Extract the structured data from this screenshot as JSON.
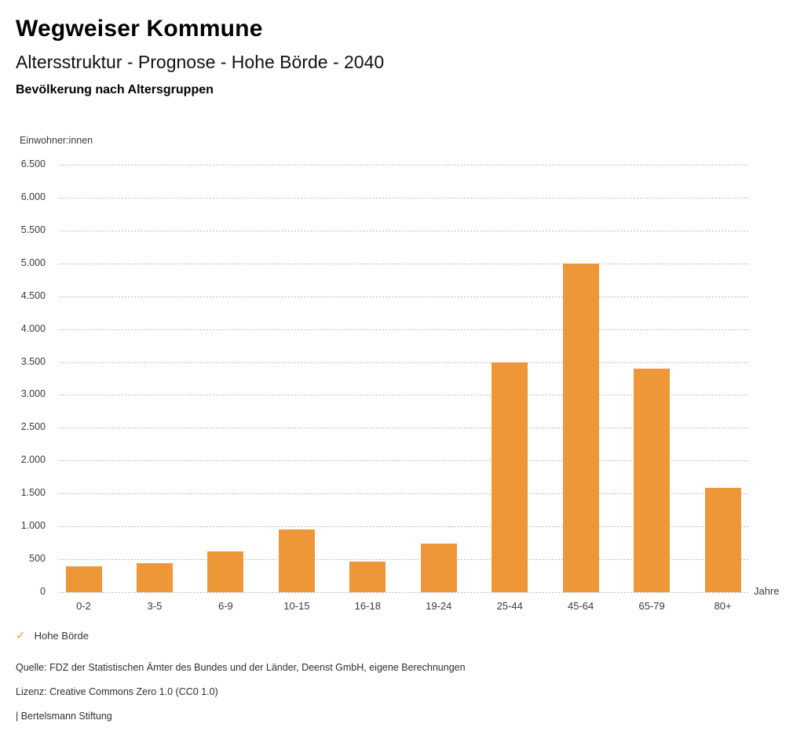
{
  "header": {
    "title": "Wegweiser Kommune",
    "subtitle": "Altersstruktur - Prognose - Hohe Börde - 2040",
    "caption": "Bevölkerung nach Altersgruppen"
  },
  "chart_data": {
    "type": "bar",
    "title": "Bevölkerung nach Altersgruppen",
    "ylabel": "Einwohner:innen",
    "xlabel": "Jahre",
    "categories": [
      "0-2",
      "3-5",
      "6-9",
      "10-15",
      "16-18",
      "19-24",
      "25-44",
      "45-64",
      "65-79",
      "80+"
    ],
    "values": [
      390,
      440,
      620,
      950,
      460,
      740,
      3500,
      5000,
      3400,
      1590
    ],
    "ylim": [
      0,
      6500
    ],
    "ytick_step": 500,
    "ytick_labels": [
      "0",
      "500",
      "1.000",
      "1.500",
      "2.000",
      "2.500",
      "3.000",
      "3.500",
      "4.000",
      "4.500",
      "5.000",
      "5.500",
      "6.000",
      "6.500"
    ],
    "grid": "horizontal-dotted",
    "bar_color": "#ED9738",
    "legend": {
      "position": "bottom-left",
      "items": [
        {
          "label": "Hohe Börde",
          "marker": "check",
          "marker_glyph": "✓",
          "color": "#ED9738"
        }
      ]
    }
  },
  "footer": {
    "source": "Quelle: FDZ der Statistischen Ämter des Bundes und der Länder, Deenst GmbH, eigene Berechnungen",
    "license": "Lizenz: Creative Commons Zero 1.0 (CC0 1.0)",
    "attribution": "| Bertelsmann Stiftung"
  }
}
